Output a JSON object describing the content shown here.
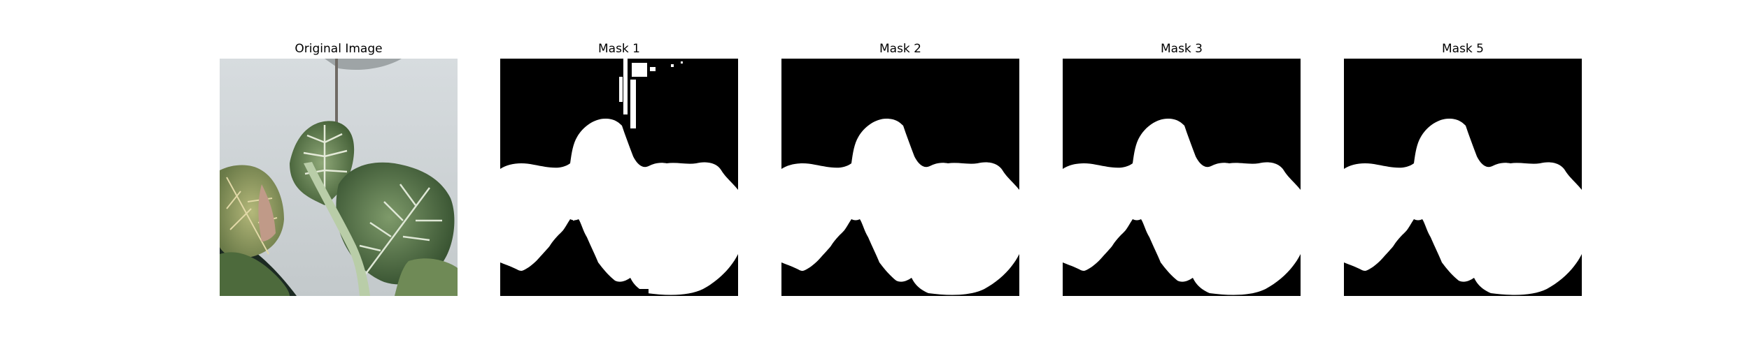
{
  "figure": {
    "panels": [
      {
        "title": "Original Image",
        "kind": "photo",
        "content": "potted plant leaves"
      },
      {
        "title": "Mask 1",
        "kind": "mask",
        "variant": "noisy"
      },
      {
        "title": "Mask 2",
        "kind": "mask",
        "variant": "clean"
      },
      {
        "title": "Mask 3",
        "kind": "mask",
        "variant": "clean"
      },
      {
        "title": "Mask 5",
        "kind": "mask",
        "variant": "clean"
      }
    ]
  }
}
